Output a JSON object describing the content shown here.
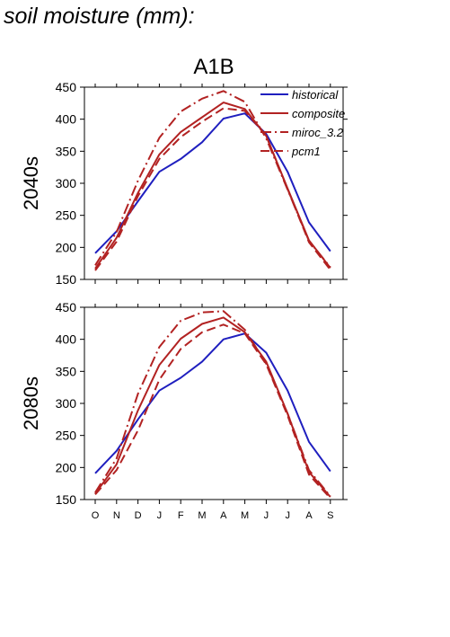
{
  "page_title": "soil moisture (mm):",
  "colors": {
    "historical": "#1f1fbf",
    "future": "#b22222",
    "axis": "#000000"
  },
  "chart_data": {
    "type": "line",
    "scenario_title": "A1B",
    "x": [
      "O",
      "N",
      "D",
      "J",
      "F",
      "M",
      "A",
      "M",
      "J",
      "J",
      "A",
      "S"
    ],
    "ylim": [
      150,
      450
    ],
    "yticks": [
      150,
      200,
      250,
      300,
      350,
      400,
      450
    ],
    "grid": false,
    "legend": {
      "placement": "top-right",
      "entries": [
        "historical",
        "composite",
        "miroc_3.2",
        "pcm1"
      ]
    },
    "panels": [
      {
        "label": "2040s",
        "series": [
          {
            "name": "historical",
            "style": "solid",
            "color": "#1f1fbf",
            "values": [
              191,
              225,
              272,
              318,
              338,
              364,
              401,
              409,
              377,
              318,
              239,
              194
            ]
          },
          {
            "name": "composite",
            "style": "solid",
            "color": "#b22222",
            "values": [
              167,
              215,
              285,
              345,
              380,
              403,
              426,
              416,
              374,
              292,
              211,
              168
            ]
          },
          {
            "name": "miroc_3.2",
            "style": "dashdot",
            "color": "#b22222",
            "values": [
              172,
              224,
              304,
              371,
              412,
              432,
              444,
              427,
              370,
              290,
              210,
              169
            ]
          },
          {
            "name": "pcm1",
            "style": "dashed",
            "color": "#b22222",
            "values": [
              164,
              209,
              280,
              338,
              372,
              396,
              417,
              413,
              374,
              291,
              208,
              165
            ]
          }
        ]
      },
      {
        "label": "2080s",
        "series": [
          {
            "name": "historical",
            "style": "solid",
            "color": "#1f1fbf",
            "values": [
              191,
              226,
              275,
              320,
              340,
              365,
              400,
              409,
              379,
              320,
              240,
              194
            ]
          },
          {
            "name": "composite",
            "style": "solid",
            "color": "#b22222",
            "values": [
              159,
              205,
              289,
              360,
              401,
              424,
              434,
              411,
              365,
              284,
              193,
              154
            ]
          },
          {
            "name": "miroc_3.2",
            "style": "dashdot",
            "color": "#b22222",
            "values": [
              161,
              214,
              315,
              388,
              429,
              442,
              444,
              415,
              362,
              284,
              196,
              155
            ]
          },
          {
            "name": "pcm1",
            "style": "dashed",
            "color": "#b22222",
            "values": [
              158,
              196,
              258,
              337,
              385,
              411,
              423,
              409,
              361,
              281,
              189,
              152
            ]
          }
        ]
      }
    ]
  }
}
